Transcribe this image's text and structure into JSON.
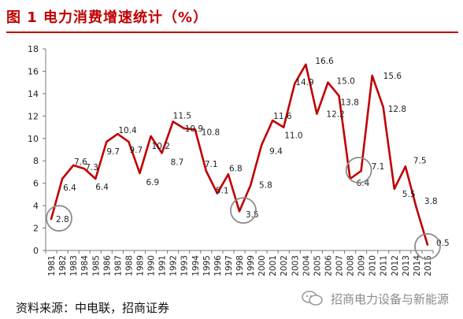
{
  "header": {
    "title": "图 1  电力消费增速统计（%）"
  },
  "footer": {
    "source": "资料来源：中电联，招商证券",
    "watermark": "招商电力设备与新能源"
  },
  "chart_data": {
    "type": "line",
    "x": [
      "1981",
      "1982",
      "1983",
      "1984",
      "1985",
      "1986",
      "1987",
      "1988",
      "1989",
      "1990",
      "1991",
      "1992",
      "1993",
      "1994",
      "1995",
      "1996",
      "1997",
      "1998",
      "1999",
      "2000",
      "2001",
      "2002",
      "2003",
      "2004",
      "2005",
      "2006",
      "2007",
      "2008",
      "2009",
      "2010",
      "2011",
      "2012",
      "2013",
      "2014",
      "2015"
    ],
    "series": [
      {
        "color": "#c00000",
        "values": [
          2.8,
          6.4,
          7.6,
          7.3,
          6.4,
          9.7,
          10.4,
          9.7,
          6.9,
          10.2,
          8.7,
          11.5,
          10.9,
          10.8,
          7.1,
          5.1,
          6.8,
          3.5,
          5.8,
          9.4,
          11.6,
          11.0,
          14.9,
          16.6,
          12.2,
          15.0,
          13.8,
          6.4,
          7.1,
          15.6,
          12.8,
          5.5,
          7.5,
          3.8,
          0.5
        ]
      }
    ],
    "data_labels": [
      {
        "i": 0,
        "text": "2.8"
      },
      {
        "i": 1,
        "text": "6.4"
      },
      {
        "i": 2,
        "text": "7.6"
      },
      {
        "i": 3,
        "text": "7.3"
      },
      {
        "i": 4,
        "text": "6.4"
      },
      {
        "i": 5,
        "text": "9.7"
      },
      {
        "i": 6,
        "text": "10.4"
      },
      {
        "i": 7,
        "text": "9.7"
      },
      {
        "i": 8,
        "text": "6.9"
      },
      {
        "i": 9,
        "text": "10.2"
      },
      {
        "i": 10,
        "text": "8.7"
      },
      {
        "i": 11,
        "text": "11.5"
      },
      {
        "i": 12,
        "text": "10.9"
      },
      {
        "i": 13,
        "text": "10.8"
      },
      {
        "i": 14,
        "text": "7.1"
      },
      {
        "i": 15,
        "text": "5.1"
      },
      {
        "i": 16,
        "text": "6.8"
      },
      {
        "i": 17,
        "text": "3.5"
      },
      {
        "i": 18,
        "text": "5.8"
      },
      {
        "i": 19,
        "text": "9.4"
      },
      {
        "i": 20,
        "text": "11.6"
      },
      {
        "i": 21,
        "text": "11.0"
      },
      {
        "i": 22,
        "text": "14.9"
      },
      {
        "i": 23,
        "text": "16.6"
      },
      {
        "i": 24,
        "text": "12.2"
      },
      {
        "i": 25,
        "text": "15.0"
      },
      {
        "i": 26,
        "text": "13.8"
      },
      {
        "i": 27,
        "text": "6.4"
      },
      {
        "i": 28,
        "text": "7.1"
      },
      {
        "i": 29,
        "text": "15.6"
      },
      {
        "i": 30,
        "text": "12.8"
      },
      {
        "i": 31,
        "text": "5.5"
      },
      {
        "i": 32,
        "text": "7.5"
      },
      {
        "i": 33,
        "text": "3.8"
      },
      {
        "i": 34,
        "text": "0.5"
      }
    ],
    "highlight_circles": [
      "1981",
      "1998",
      "2009",
      "2015"
    ],
    "ylim": [
      0,
      18
    ],
    "yticks": [
      0,
      2,
      4,
      6,
      8,
      10,
      12,
      14,
      16,
      18
    ],
    "grid": false,
    "line_color": "#c00000"
  }
}
